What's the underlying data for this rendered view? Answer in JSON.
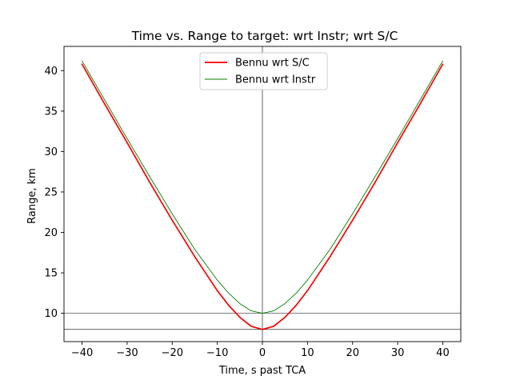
{
  "chart_data": {
    "type": "line",
    "title": "Time vs. Range to target:  wrt Instr; wrt S/C",
    "xlabel": "Time, s past TCA",
    "ylabel": "Range, km",
    "xlim": [
      -44,
      44
    ],
    "ylim": [
      6.5,
      43
    ],
    "xticks": [
      -40,
      -30,
      -20,
      -10,
      0,
      10,
      20,
      30,
      40
    ],
    "xtick_labels": [
      "−40",
      "−30",
      "−20",
      "−10",
      "0",
      "10",
      "20",
      "30",
      "40"
    ],
    "yticks": [
      10,
      15,
      20,
      25,
      30,
      35,
      40
    ],
    "ytick_labels": [
      "10",
      "15",
      "20",
      "25",
      "30",
      "35",
      "40"
    ],
    "grid": false,
    "legend_position": "top-center",
    "reference_lines": {
      "vertical_x": [
        0
      ],
      "horizontal_y": [
        8,
        10
      ],
      "color": "#000000"
    },
    "series": [
      {
        "name": "Bennu wrt S/C",
        "color": "#ff0000",
        "x": [
          -40,
          -35,
          -30,
          -25,
          -20,
          -15,
          -10,
          -7.5,
          -5,
          -2.5,
          0,
          2.5,
          5,
          7.5,
          10,
          15,
          20,
          25,
          30,
          35,
          40
        ],
        "values": [
          40.8,
          35.9,
          31.1,
          26.2,
          21.5,
          17.0,
          12.8,
          11.0,
          9.5,
          8.4,
          8.0,
          8.4,
          9.5,
          11.0,
          12.8,
          17.0,
          21.5,
          26.2,
          31.1,
          35.9,
          40.8
        ]
      },
      {
        "name": "Bennu wrt Instr",
        "color": "#008000",
        "x": [
          -40,
          -35,
          -30,
          -25,
          -20,
          -15,
          -10,
          -7.5,
          -5,
          -2.5,
          0,
          2.5,
          5,
          7.5,
          10,
          15,
          20,
          25,
          30,
          35,
          40
        ],
        "values": [
          41.2,
          36.4,
          31.6,
          26.9,
          22.3,
          17.9,
          14.1,
          12.5,
          11.2,
          10.3,
          10.0,
          10.3,
          11.2,
          12.5,
          14.1,
          17.9,
          22.3,
          26.9,
          31.6,
          36.4,
          41.2
        ]
      }
    ]
  }
}
